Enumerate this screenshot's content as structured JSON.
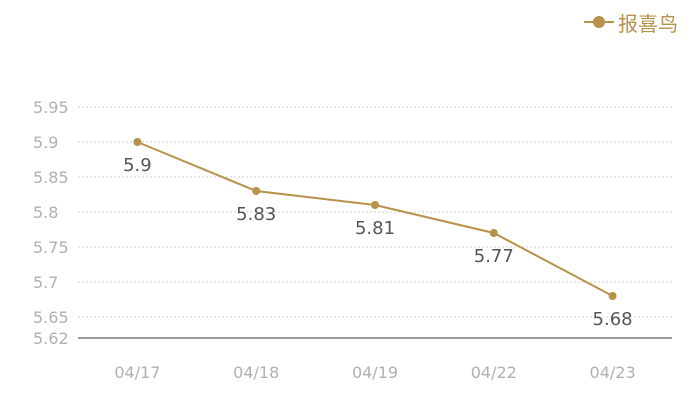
{
  "legend": {
    "label": "报喜鸟"
  },
  "colors": {
    "series": "#b8924a",
    "grid": "#cfcfcf",
    "axis": "#333333",
    "tick_text": "#b0b0b0",
    "data_label": "#555555"
  },
  "chart_data": {
    "type": "line",
    "categories": [
      "04/17",
      "04/18",
      "04/19",
      "04/22",
      "04/23"
    ],
    "series": [
      {
        "name": "报喜鸟",
        "values": [
          5.9,
          5.83,
          5.81,
          5.77,
          5.68
        ],
        "labels": [
          "5.9",
          "5.83",
          "5.81",
          "5.77",
          "5.68"
        ]
      }
    ],
    "y_ticks": [
      5.62,
      5.65,
      5.7,
      5.75,
      5.8,
      5.85,
      5.9,
      5.95
    ],
    "y_tick_labels": [
      "5.62",
      "5.65",
      "5.7",
      "5.75",
      "5.8",
      "5.85",
      "5.9",
      "5.95"
    ],
    "ylim": [
      5.62,
      5.95
    ],
    "grid": "horizontal-dotted",
    "legend_position": "top-right",
    "title": "",
    "xlabel": "",
    "ylabel": ""
  }
}
